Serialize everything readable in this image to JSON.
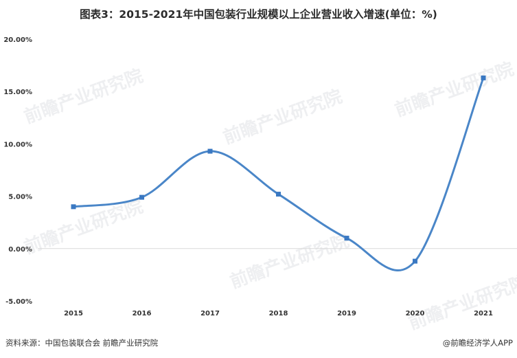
{
  "title": "图表3：2015-2021年中国包装行业规模以上企业营业收入增速(单位：%)",
  "source": "资料来源：中国包装联合会 前瞻产业研究院",
  "brand": "@前瞻经济学人APP",
  "watermark": "前瞻产业研究院",
  "colors": {
    "line": "#4a86c8",
    "marker": "#3a78c2",
    "zero_line": "#d9d9d9"
  },
  "chart_data": {
    "type": "line",
    "title": "图表3：2015-2021年中国包装行业规模以上企业营业收入增速(单位：%)",
    "categories": [
      "2015",
      "2016",
      "2017",
      "2018",
      "2019",
      "2020",
      "2021"
    ],
    "series": [
      {
        "values": [
          4.0,
          4.9,
          9.3,
          5.2,
          1.0,
          -1.2,
          16.3
        ]
      }
    ],
    "ylim": [
      -5,
      20
    ],
    "yticks": [
      -5,
      0,
      5,
      10,
      15,
      20
    ],
    "ytick_labels": [
      "-5.00%",
      "0.00%",
      "5.00%",
      "10.00%",
      "15.00%",
      "20.00%"
    ],
    "xlabel": "",
    "ylabel": "",
    "grid": false,
    "smooth": true
  }
}
